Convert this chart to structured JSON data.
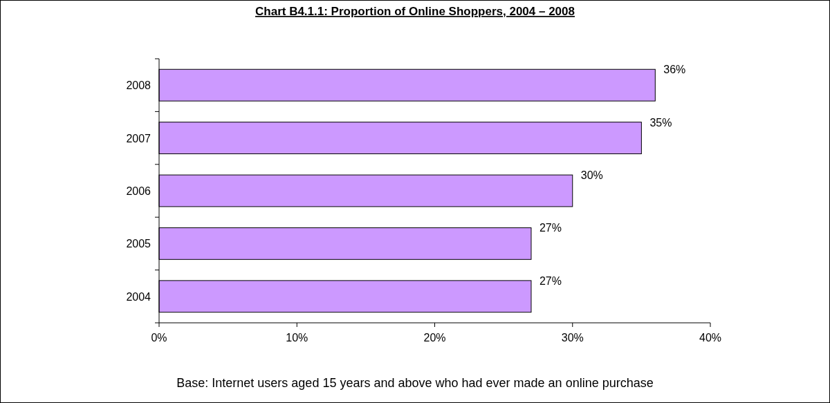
{
  "chart_data": {
    "type": "bar",
    "orientation": "horizontal",
    "title": "Chart B4.1.1:  Proportion of Online Shoppers, 2004 – 2008",
    "categories": [
      "2008",
      "2007",
      "2006",
      "2005",
      "2004"
    ],
    "values": [
      36,
      35,
      30,
      27,
      27
    ],
    "value_labels": [
      "36%",
      "35%",
      "30%",
      "27%",
      "27%"
    ],
    "color": "#cc99ff",
    "xlim": [
      0,
      40
    ],
    "xticks": [
      {
        "value": 0,
        "label": "0%"
      },
      {
        "value": 10,
        "label": "10%"
      },
      {
        "value": 20,
        "label": "20%"
      },
      {
        "value": 30,
        "label": "30%"
      },
      {
        "value": 40,
        "label": "40%"
      }
    ],
    "grid": false,
    "annotations": [
      "Base: Internet users aged 15 years and above who had ever made an online purchase"
    ]
  }
}
